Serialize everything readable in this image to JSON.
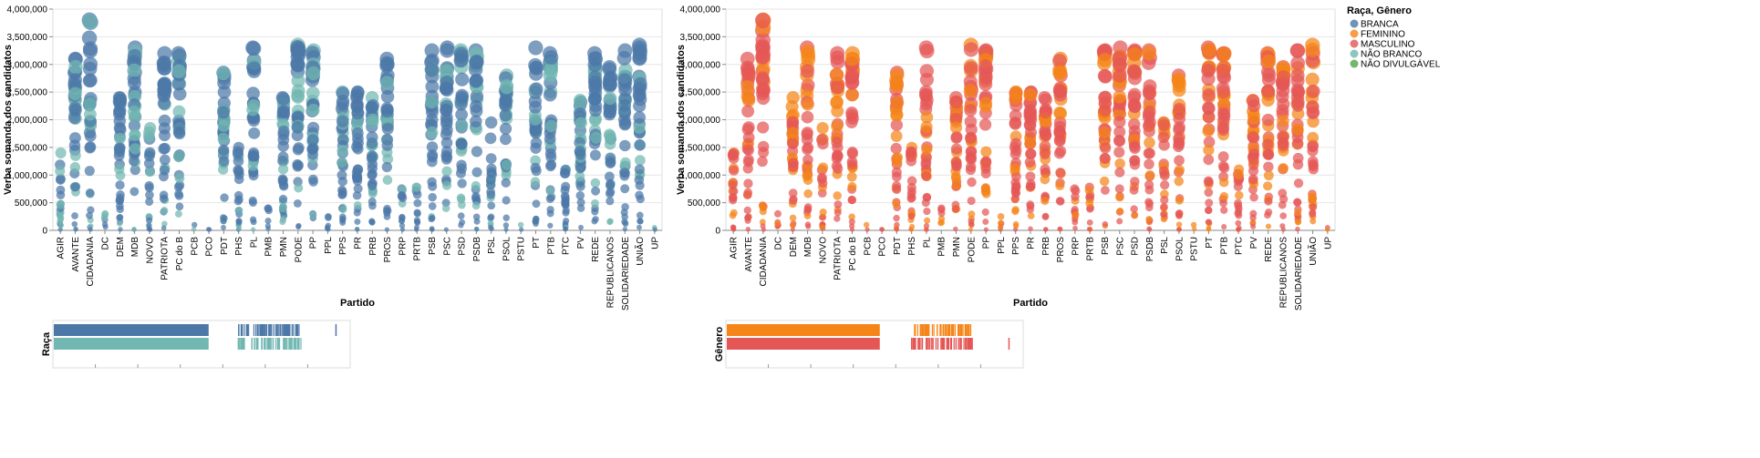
{
  "chart_data": [
    {
      "type": "scatter",
      "title": "",
      "xlabel": "Partido",
      "ylabel": "Verba somanda dos candidatos",
      "ylim": [
        0,
        4000000
      ],
      "y_ticks": [
        "0",
        "500,000",
        "1,000,000",
        "1,500,000",
        "2,000,000",
        "2,500,000",
        "3,000,000",
        "3,500,000",
        "4,000,000"
      ],
      "color_field": "Raça",
      "categories": [
        "AGIR",
        "AVANTE",
        "CIDADANIA",
        "DC",
        "DEM",
        "MDB",
        "NOVO",
        "PATRIOTA",
        "PC do B",
        "PCB",
        "PCO",
        "PDT",
        "PHS",
        "PL",
        "PMB",
        "PMN",
        "PODE",
        "PP",
        "PPL",
        "PPS",
        "PR",
        "PRB",
        "PROS",
        "PRP",
        "PRTB",
        "PSB",
        "PSC",
        "PSD",
        "PSDB",
        "PSL",
        "PSOL",
        "PSTU",
        "PT",
        "PTB",
        "PTC",
        "PV",
        "REDE",
        "REPUBLICANOS",
        "SOLIDARIEDADE",
        "UNIÃO",
        "UP"
      ],
      "max_by_party": [
        1400000,
        3100000,
        3800000,
        300000,
        2400000,
        3300000,
        1850000,
        3200000,
        3200000,
        100000,
        20000,
        2850000,
        1500000,
        3300000,
        400000,
        2400000,
        3350000,
        3250000,
        250000,
        2500000,
        2500000,
        2400000,
        3100000,
        750000,
        780000,
        3250000,
        3300000,
        3250000,
        3250000,
        1950000,
        2800000,
        100000,
        3300000,
        3200000,
        1100000,
        2350000,
        3200000,
        2950000,
        3250000,
        3350000,
        50000
      ],
      "secondary_share": 0.25,
      "mini_rows": [
        "BRANCA",
        "NÃO BRANCO"
      ],
      "mini_label": "Raça"
    },
    {
      "type": "scatter",
      "title": "",
      "xlabel": "Partido",
      "ylabel": "Verba somanda dos candidatos",
      "ylim": [
        0,
        4000000
      ],
      "y_ticks": [
        "0",
        "500,000",
        "1,000,000",
        "1,500,000",
        "2,000,000",
        "2,500,000",
        "3,000,000",
        "3,500,000",
        "4,000,000"
      ],
      "color_field": "Gênero",
      "categories": [
        "AGIR",
        "AVANTE",
        "CIDADANIA",
        "DC",
        "DEM",
        "MDB",
        "NOVO",
        "PATRIOTA",
        "PC do B",
        "PCB",
        "PCO",
        "PDT",
        "PHS",
        "PL",
        "PMB",
        "PMN",
        "PODE",
        "PP",
        "PPL",
        "PPS",
        "PR",
        "PRB",
        "PROS",
        "PRP",
        "PRTB",
        "PSB",
        "PSC",
        "PSD",
        "PSDB",
        "PSL",
        "PSOL",
        "PSTU",
        "PT",
        "PTB",
        "PTC",
        "PV",
        "REDE",
        "REPUBLICANOS",
        "SOLIDARIEDADE",
        "UNIÃO",
        "UP"
      ],
      "max_by_party": [
        1400000,
        3100000,
        3800000,
        300000,
        2400000,
        3300000,
        1850000,
        3200000,
        3200000,
        100000,
        20000,
        2850000,
        1500000,
        3300000,
        400000,
        2400000,
        3350000,
        3250000,
        250000,
        2500000,
        2500000,
        2400000,
        3100000,
        750000,
        780000,
        3250000,
        3300000,
        3250000,
        3250000,
        1950000,
        2800000,
        100000,
        3300000,
        3200000,
        1100000,
        2350000,
        3200000,
        2950000,
        3250000,
        3350000,
        50000
      ],
      "secondary_share": 0.35,
      "mini_rows": [
        "FEMININO",
        "MASCULINO"
      ],
      "mini_label": "Gênero"
    }
  ],
  "legend": {
    "title": "Raça, Gênero",
    "items": [
      {
        "label": "BRANCA",
        "color": "#4c78a8"
      },
      {
        "label": "FEMININO",
        "color": "#f58518"
      },
      {
        "label": "MASCULINO",
        "color": "#e45756"
      },
      {
        "label": "NÃO BRANCO",
        "color": "#72b7b2"
      },
      {
        "label": "NÃO DIVULGÁVEL",
        "color": "#54a24b"
      }
    ]
  },
  "colors": {
    "BRANCA": "#4c78a8",
    "NÃO BRANCO": "#72b7b2",
    "FEMININO": "#f58518",
    "MASCULINO": "#e45756"
  }
}
